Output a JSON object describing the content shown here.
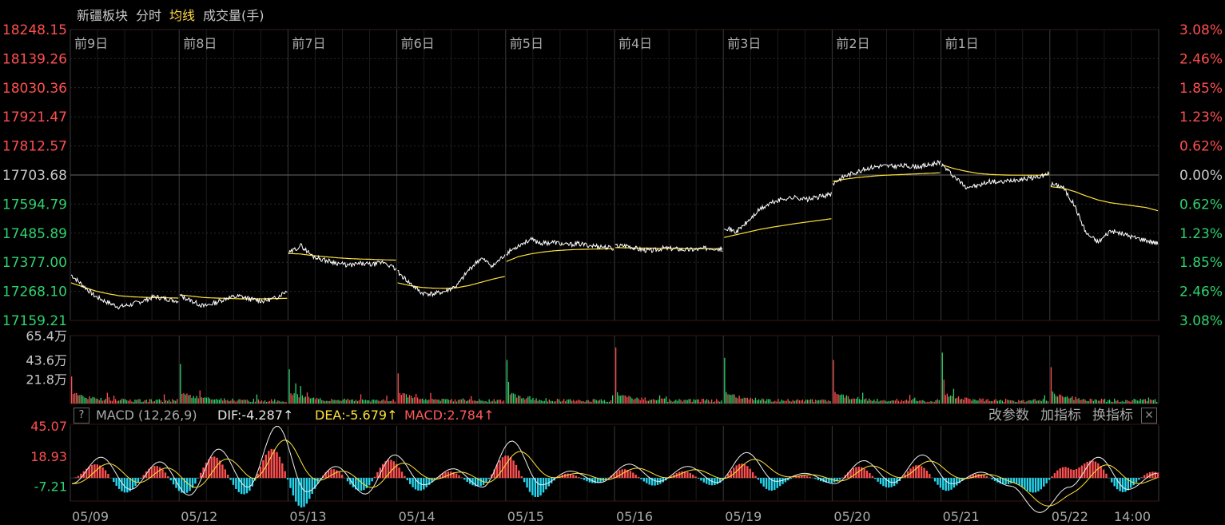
{
  "header": {
    "tabs": [
      {
        "label": "新疆板块",
        "active": false
      },
      {
        "label": "分时",
        "active": false
      },
      {
        "label": "均线",
        "active": true
      },
      {
        "label": "成交量(手)",
        "active": false
      }
    ]
  },
  "chart_data": {
    "type": "line",
    "price_axis": {
      "left_labels": [
        "18248.15",
        "18139.26",
        "18030.36",
        "17921.47",
        "17812.57",
        "17703.68",
        "17594.79",
        "17485.89",
        "17377.00",
        "17268.10",
        "17159.21"
      ],
      "right_labels": [
        "3.08%",
        "2.46%",
        "1.85%",
        "1.23%",
        "0.62%",
        "0.00%",
        "0.62%",
        "1.23%",
        "1.85%",
        "2.46%",
        "3.08%"
      ],
      "range": [
        17159.21,
        18248.15
      ],
      "baseline": 17703.68
    },
    "day_labels": [
      "前9日",
      "前8日",
      "前7日",
      "前6日",
      "前5日",
      "前4日",
      "前3日",
      "前2日",
      "前1日"
    ],
    "date_labels": [
      "05/09",
      "05/12",
      "05/13",
      "05/14",
      "05/15",
      "05/16",
      "05/19",
      "05/20",
      "05/21",
      "05/22",
      "14:00"
    ],
    "series": [
      {
        "values": [
          [
            17330,
            17290,
            17250,
            17228,
            17210,
            17218,
            17232,
            17248,
            17240,
            17232
          ],
          [
            17252,
            17232,
            17212,
            17226,
            17244,
            17250,
            17238,
            17232,
            17242,
            17272
          ],
          [
            17410,
            17440,
            17400,
            17385,
            17375,
            17365,
            17372,
            17368,
            17378,
            17350
          ],
          [
            17340,
            17300,
            17262,
            17258,
            17268,
            17290,
            17350,
            17392,
            17362,
            17405
          ],
          [
            17410,
            17440,
            17462,
            17448,
            17452,
            17442,
            17446,
            17440,
            17436,
            17428
          ],
          [
            17438,
            17440,
            17426,
            17420,
            17430,
            17428,
            17424,
            17426,
            17432,
            17426
          ],
          [
            17510,
            17490,
            17530,
            17575,
            17600,
            17615,
            17620,
            17612,
            17622,
            17632
          ],
          [
            17672,
            17700,
            17716,
            17730,
            17738,
            17736,
            17738,
            17735,
            17740,
            17754
          ],
          [
            17742,
            17700,
            17660,
            17662,
            17680,
            17676,
            17686,
            17690,
            17696,
            17708
          ],
          [
            17670,
            17660,
            17590,
            17485,
            17452,
            17495,
            17484,
            17470,
            17460,
            17447
          ]
        ]
      },
      {
        "values": [
          [
            17300,
            17285,
            17270,
            17260,
            17252,
            17248,
            17246,
            17245,
            17244,
            17243
          ],
          [
            17255,
            17250,
            17245,
            17243,
            17242,
            17240,
            17240,
            17240,
            17241,
            17242
          ],
          [
            17410,
            17408,
            17402,
            17398,
            17394,
            17391,
            17389,
            17388,
            17386,
            17385
          ],
          [
            17300,
            17290,
            17283,
            17280,
            17279,
            17282,
            17290,
            17302,
            17314,
            17324
          ],
          [
            17380,
            17398,
            17408,
            17415,
            17420,
            17423,
            17425,
            17426,
            17427,
            17428
          ],
          [
            17432,
            17431,
            17430,
            17430,
            17429,
            17429,
            17428,
            17428,
            17428,
            17428
          ],
          [
            17470,
            17480,
            17490,
            17500,
            17508,
            17515,
            17522,
            17528,
            17534,
            17540
          ],
          [
            17680,
            17688,
            17694,
            17698,
            17702,
            17704,
            17706,
            17708,
            17710,
            17712
          ],
          [
            17742,
            17728,
            17718,
            17710,
            17706,
            17704,
            17703,
            17703,
            17703,
            17704
          ],
          [
            17660,
            17655,
            17642,
            17625,
            17610,
            17600,
            17594,
            17588,
            17582,
            17570
          ]
        ]
      }
    ],
    "volume": {
      "labels": [
        "65.4万",
        "43.6万",
        "21.8万"
      ],
      "max": 654000,
      "day_open_volume": [
        260000,
        380000,
        330000,
        290000,
        420000,
        540000,
        440000,
        420000,
        490000,
        350000
      ]
    },
    "macd": {
      "labels": [
        "45.07",
        "18.93",
        "-7.21"
      ],
      "range": [
        -20,
        45.07
      ],
      "params": "MACD (12,26,9)",
      "dif": "DIF:-4.287↑",
      "dea": "DEA:-5.679↑",
      "value": "MACD:2.784↑",
      "dif_points": [
        -5,
        18,
        -10,
        14,
        -15,
        25,
        -8,
        45,
        -12,
        10,
        -14,
        20,
        -6,
        8,
        -8,
        32,
        -6,
        6,
        -4,
        12,
        -3,
        10,
        -4,
        22,
        -3,
        4,
        -5,
        15,
        -4,
        20,
        -5,
        5,
        -7,
        -30,
        -8,
        18,
        -10,
        4
      ]
    },
    "colors": {
      "up": "#ff4f4f",
      "down": "#2fd36d",
      "macd_down": "#25d8f0",
      "ma": "#ffe23b",
      "price": "#ffffff"
    }
  },
  "macd_toolbar": {
    "help": "?",
    "buttons": [
      "改参数",
      "加指标",
      "换指标"
    ],
    "close": "✕"
  }
}
